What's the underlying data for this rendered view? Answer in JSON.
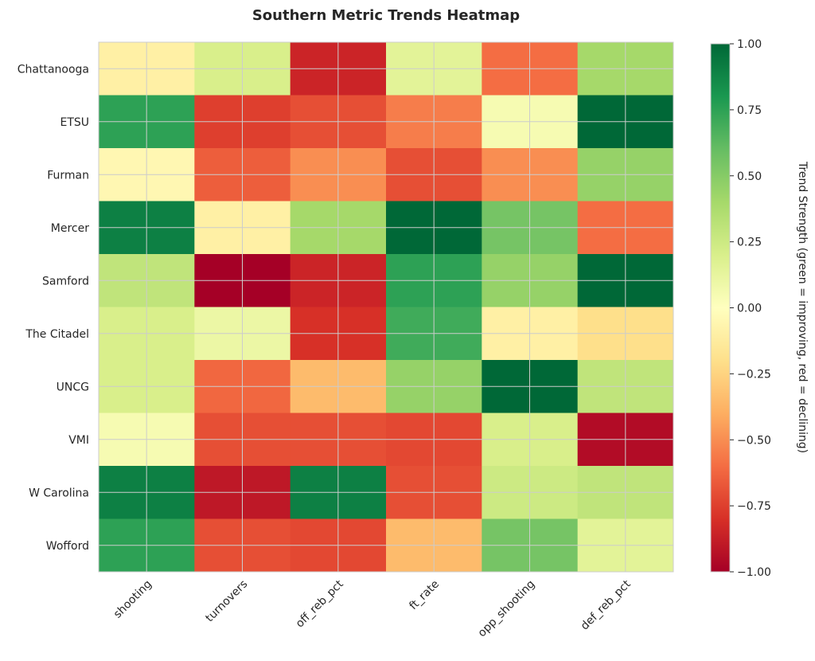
{
  "chart_data": {
    "type": "heatmap",
    "title": "Southern Metric Trends Heatmap",
    "xlabel": "",
    "ylabel": "",
    "rows": [
      "Chattanooga",
      "ETSU",
      "Furman",
      "Mercer",
      "Samford",
      "The Citadel",
      "UNCG",
      "VMI",
      "W Carolina",
      "Wofford"
    ],
    "columns": [
      "shooting",
      "turnovers",
      "off_reb_pct",
      "ft_rate",
      "opp_shooting",
      "def_reb_pct"
    ],
    "values": [
      [
        -0.1,
        0.2,
        -0.85,
        0.15,
        -0.6,
        0.4
      ],
      [
        0.75,
        -0.75,
        -0.7,
        -0.55,
        0.05,
        1.0
      ],
      [
        -0.05,
        -0.65,
        -0.5,
        -0.7,
        -0.5,
        0.45
      ],
      [
        0.9,
        -0.1,
        0.4,
        1.0,
        0.55,
        -0.6
      ],
      [
        0.3,
        -1.0,
        -0.85,
        0.75,
        0.45,
        1.0
      ],
      [
        0.2,
        0.1,
        -0.8,
        0.7,
        -0.1,
        -0.2
      ],
      [
        0.2,
        -0.62,
        -0.35,
        0.45,
        1.0,
        0.3
      ],
      [
        0.05,
        -0.7,
        -0.7,
        -0.72,
        0.2,
        -0.95
      ],
      [
        0.9,
        -0.9,
        0.9,
        -0.7,
        0.25,
        0.3
      ],
      [
        0.75,
        -0.7,
        -0.72,
        -0.35,
        0.55,
        0.15
      ]
    ],
    "vmin": -1.0,
    "vmax": 1.0,
    "colorbar": {
      "label": "Trend Strength (green = improving, red = declining)",
      "ticks": [
        -1.0,
        -0.75,
        -0.5,
        -0.25,
        0.0,
        0.25,
        0.5,
        0.75,
        1.0
      ],
      "tick_labels": [
        "−1.00",
        "−0.75",
        "−0.50",
        "−0.25",
        "0.00",
        "0.25",
        "0.50",
        "0.75",
        "1.00"
      ]
    },
    "colormap": "RdYlGn",
    "colormap_stops": [
      "#a50026",
      "#d73027",
      "#f46d43",
      "#fdae61",
      "#fee08b",
      "#ffffbf",
      "#d9ef8b",
      "#a6d96a",
      "#66bd63",
      "#1a9850",
      "#006837"
    ],
    "grid": true,
    "grid_color": "#cccccc"
  }
}
